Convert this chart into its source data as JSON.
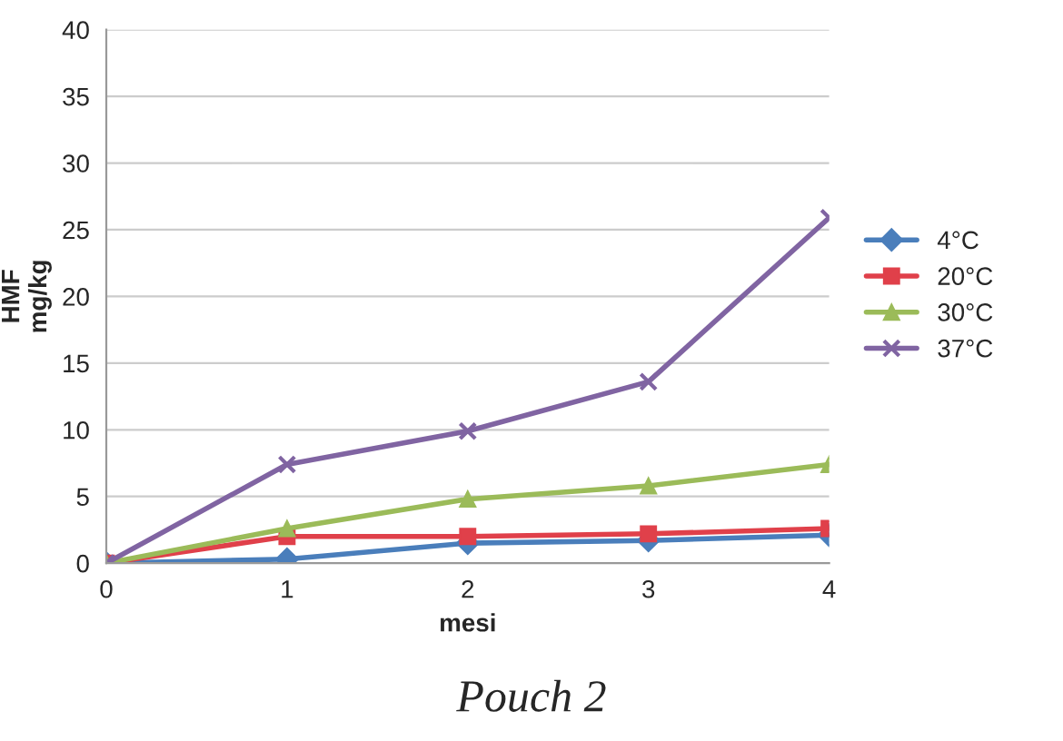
{
  "chart_data": {
    "type": "line",
    "xlabel": "mesi",
    "ylabel": "HMF\nmg/kg",
    "x": [
      0,
      1,
      2,
      3,
      4
    ],
    "xlim": [
      0,
      4
    ],
    "xticks": [
      0,
      1,
      2,
      3,
      4
    ],
    "ylim": [
      0,
      40
    ],
    "yticks": [
      0,
      5,
      10,
      15,
      20,
      25,
      30,
      35,
      40
    ],
    "grid": "y",
    "legend": "right",
    "series": [
      {
        "name": "4°C",
        "color": "#4a7ebb",
        "marker": "diamond",
        "values": [
          0,
          0.3,
          1.5,
          1.7,
          2.1
        ]
      },
      {
        "name": "20°C",
        "color": "#e0404a",
        "marker": "square",
        "values": [
          0,
          2.0,
          2.0,
          2.2,
          2.6
        ]
      },
      {
        "name": "30°C",
        "color": "#9bbb59",
        "marker": "triangle",
        "values": [
          0,
          2.6,
          4.8,
          5.8,
          7.4
        ]
      },
      {
        "name": "37°C",
        "color": "#8064a2",
        "marker": "cross",
        "values": [
          0,
          7.4,
          9.9,
          13.6,
          25.9
        ]
      }
    ],
    "annotations": [
      "Pouch 2"
    ]
  }
}
